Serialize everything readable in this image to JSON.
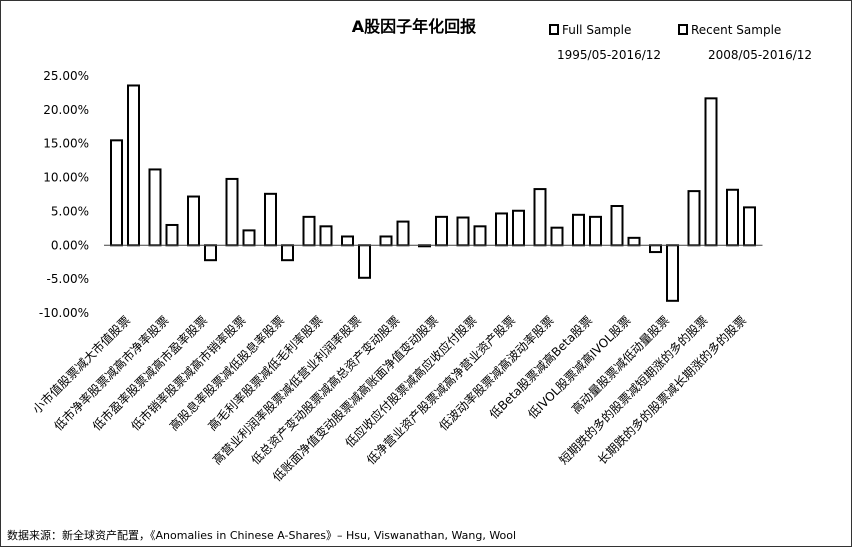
{
  "chart_data": {
    "type": "bar",
    "title": "A股因子年化回报",
    "legend_position": "top-right",
    "series": [
      {
        "name": "Full Sample",
        "period": "1995/05-2016/12",
        "values": [
          15.5,
          11.2,
          7.2,
          9.8,
          7.6,
          4.2,
          1.3,
          1.3,
          -0.1,
          4.1,
          4.7,
          8.3,
          4.5,
          5.8,
          -1.0,
          8.0,
          8.2
        ]
      },
      {
        "name": "Recent Sample",
        "period": "2008/05-2016/12",
        "values": [
          23.6,
          3.0,
          -2.2,
          2.2,
          -2.2,
          2.8,
          -4.8,
          3.5,
          4.2,
          2.8,
          5.1,
          2.6,
          4.2,
          1.1,
          -8.2,
          21.7,
          5.6
        ]
      }
    ],
    "categories": [
      "小市值股票减大市值股票",
      "低市净率股票减高市净率股票",
      "低市盈率股票减高市盈率股票",
      "低市销率股票减高市销率股票",
      "高股息率股票减低股息率股票",
      "高毛利率股票减低毛利率股票",
      "高营业利润率股票减低营业利润率股票",
      "低总资产变动股票减高总资产变动股票",
      "低账面净值变动股票减高账面净值变动股票",
      "低应收应付股票减高应收应付股票",
      "低净营业资产股票减高净营业资产股票",
      "低波动率股票减高波动率股票",
      "低Beta股票减高Beta股票",
      "低IVOL股票减高IVOL股票",
      "高动量股票减低动量股票",
      "短期跌的多的股票减短期涨的多的股票",
      "长期跌的多的股票减长期涨的多的股票"
    ],
    "y_ticks": [
      "25.00%",
      "20.00%",
      "15.00%",
      "10.00%",
      "5.00%",
      "0.00%",
      "-5.00%",
      "-10.00%"
    ],
    "ylim": [
      -10,
      25
    ],
    "grid": false
  },
  "source_text": "数据来源：新全球资产配置，《Anomalies in Chinese A-Shares》– Hsu, Viswanathan, Wang, Wool"
}
